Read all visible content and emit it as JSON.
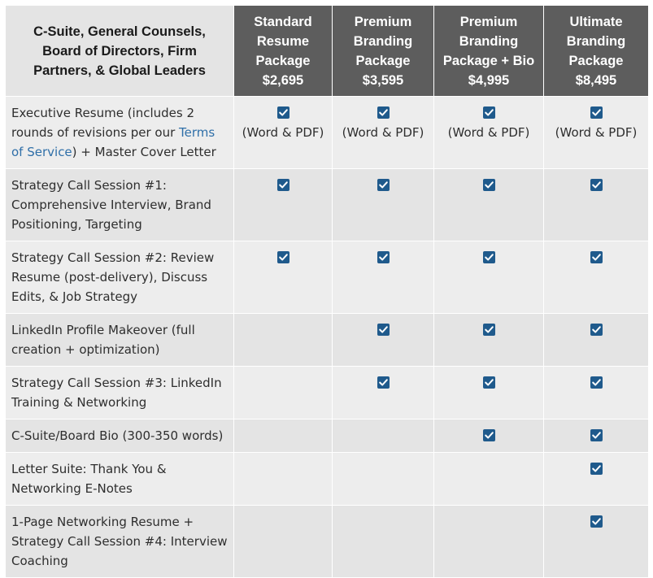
{
  "header": {
    "corner": "C-Suite, General Counsels, Board of Directors, Firm Partners, & Global Leaders",
    "packages": [
      {
        "name": "Standard Resume Package",
        "price": "$2,695"
      },
      {
        "name": "Premium Branding Package",
        "price": "$3,595"
      },
      {
        "name": "Premium Branding Package + Bio",
        "price": "$4,995"
      },
      {
        "name": "Ultimate Branding Package",
        "price": "$8,495"
      }
    ]
  },
  "rows": [
    {
      "feature_pre": "Executive Resume (includes 2 rounds of revisions per our ",
      "feature_link": "Terms of Service",
      "feature_post": ") + Master Cover Letter",
      "included": [
        true,
        true,
        true,
        true
      ],
      "note": "(Word & PDF)"
    },
    {
      "feature": "Strategy Call Session #1: Comprehensive Interview, Brand Positioning, Targeting",
      "included": [
        true,
        true,
        true,
        true
      ]
    },
    {
      "feature": "Strategy Call Session #2: Review Resume (post-delivery), Discuss Edits, & Job Strategy",
      "included": [
        true,
        true,
        true,
        true
      ]
    },
    {
      "feature": "LinkedIn Profile Makeover (full creation + optimization)",
      "included": [
        false,
        true,
        true,
        true
      ]
    },
    {
      "feature": "Strategy Call Session #3: LinkedIn Training & Networking",
      "included": [
        false,
        true,
        true,
        true
      ]
    },
    {
      "feature": "C-Suite/Board Bio (300-350 words)",
      "included": [
        false,
        false,
        true,
        true
      ]
    },
    {
      "feature": "Letter Suite: Thank You & Networking E-Notes",
      "included": [
        false,
        false,
        false,
        true
      ]
    },
    {
      "feature": "1-Page Networking Resume + Strategy Call Session #4: Interview Coaching",
      "included": [
        false,
        false,
        false,
        true
      ]
    }
  ],
  "icons": {
    "check": "checkbox-checked-icon"
  },
  "colors": {
    "header_bg": "#5d5d5d",
    "check": "#1f5a8c",
    "link": "#2f6fa8",
    "row_a": "#ededed",
    "row_b": "#e4e4e4"
  }
}
